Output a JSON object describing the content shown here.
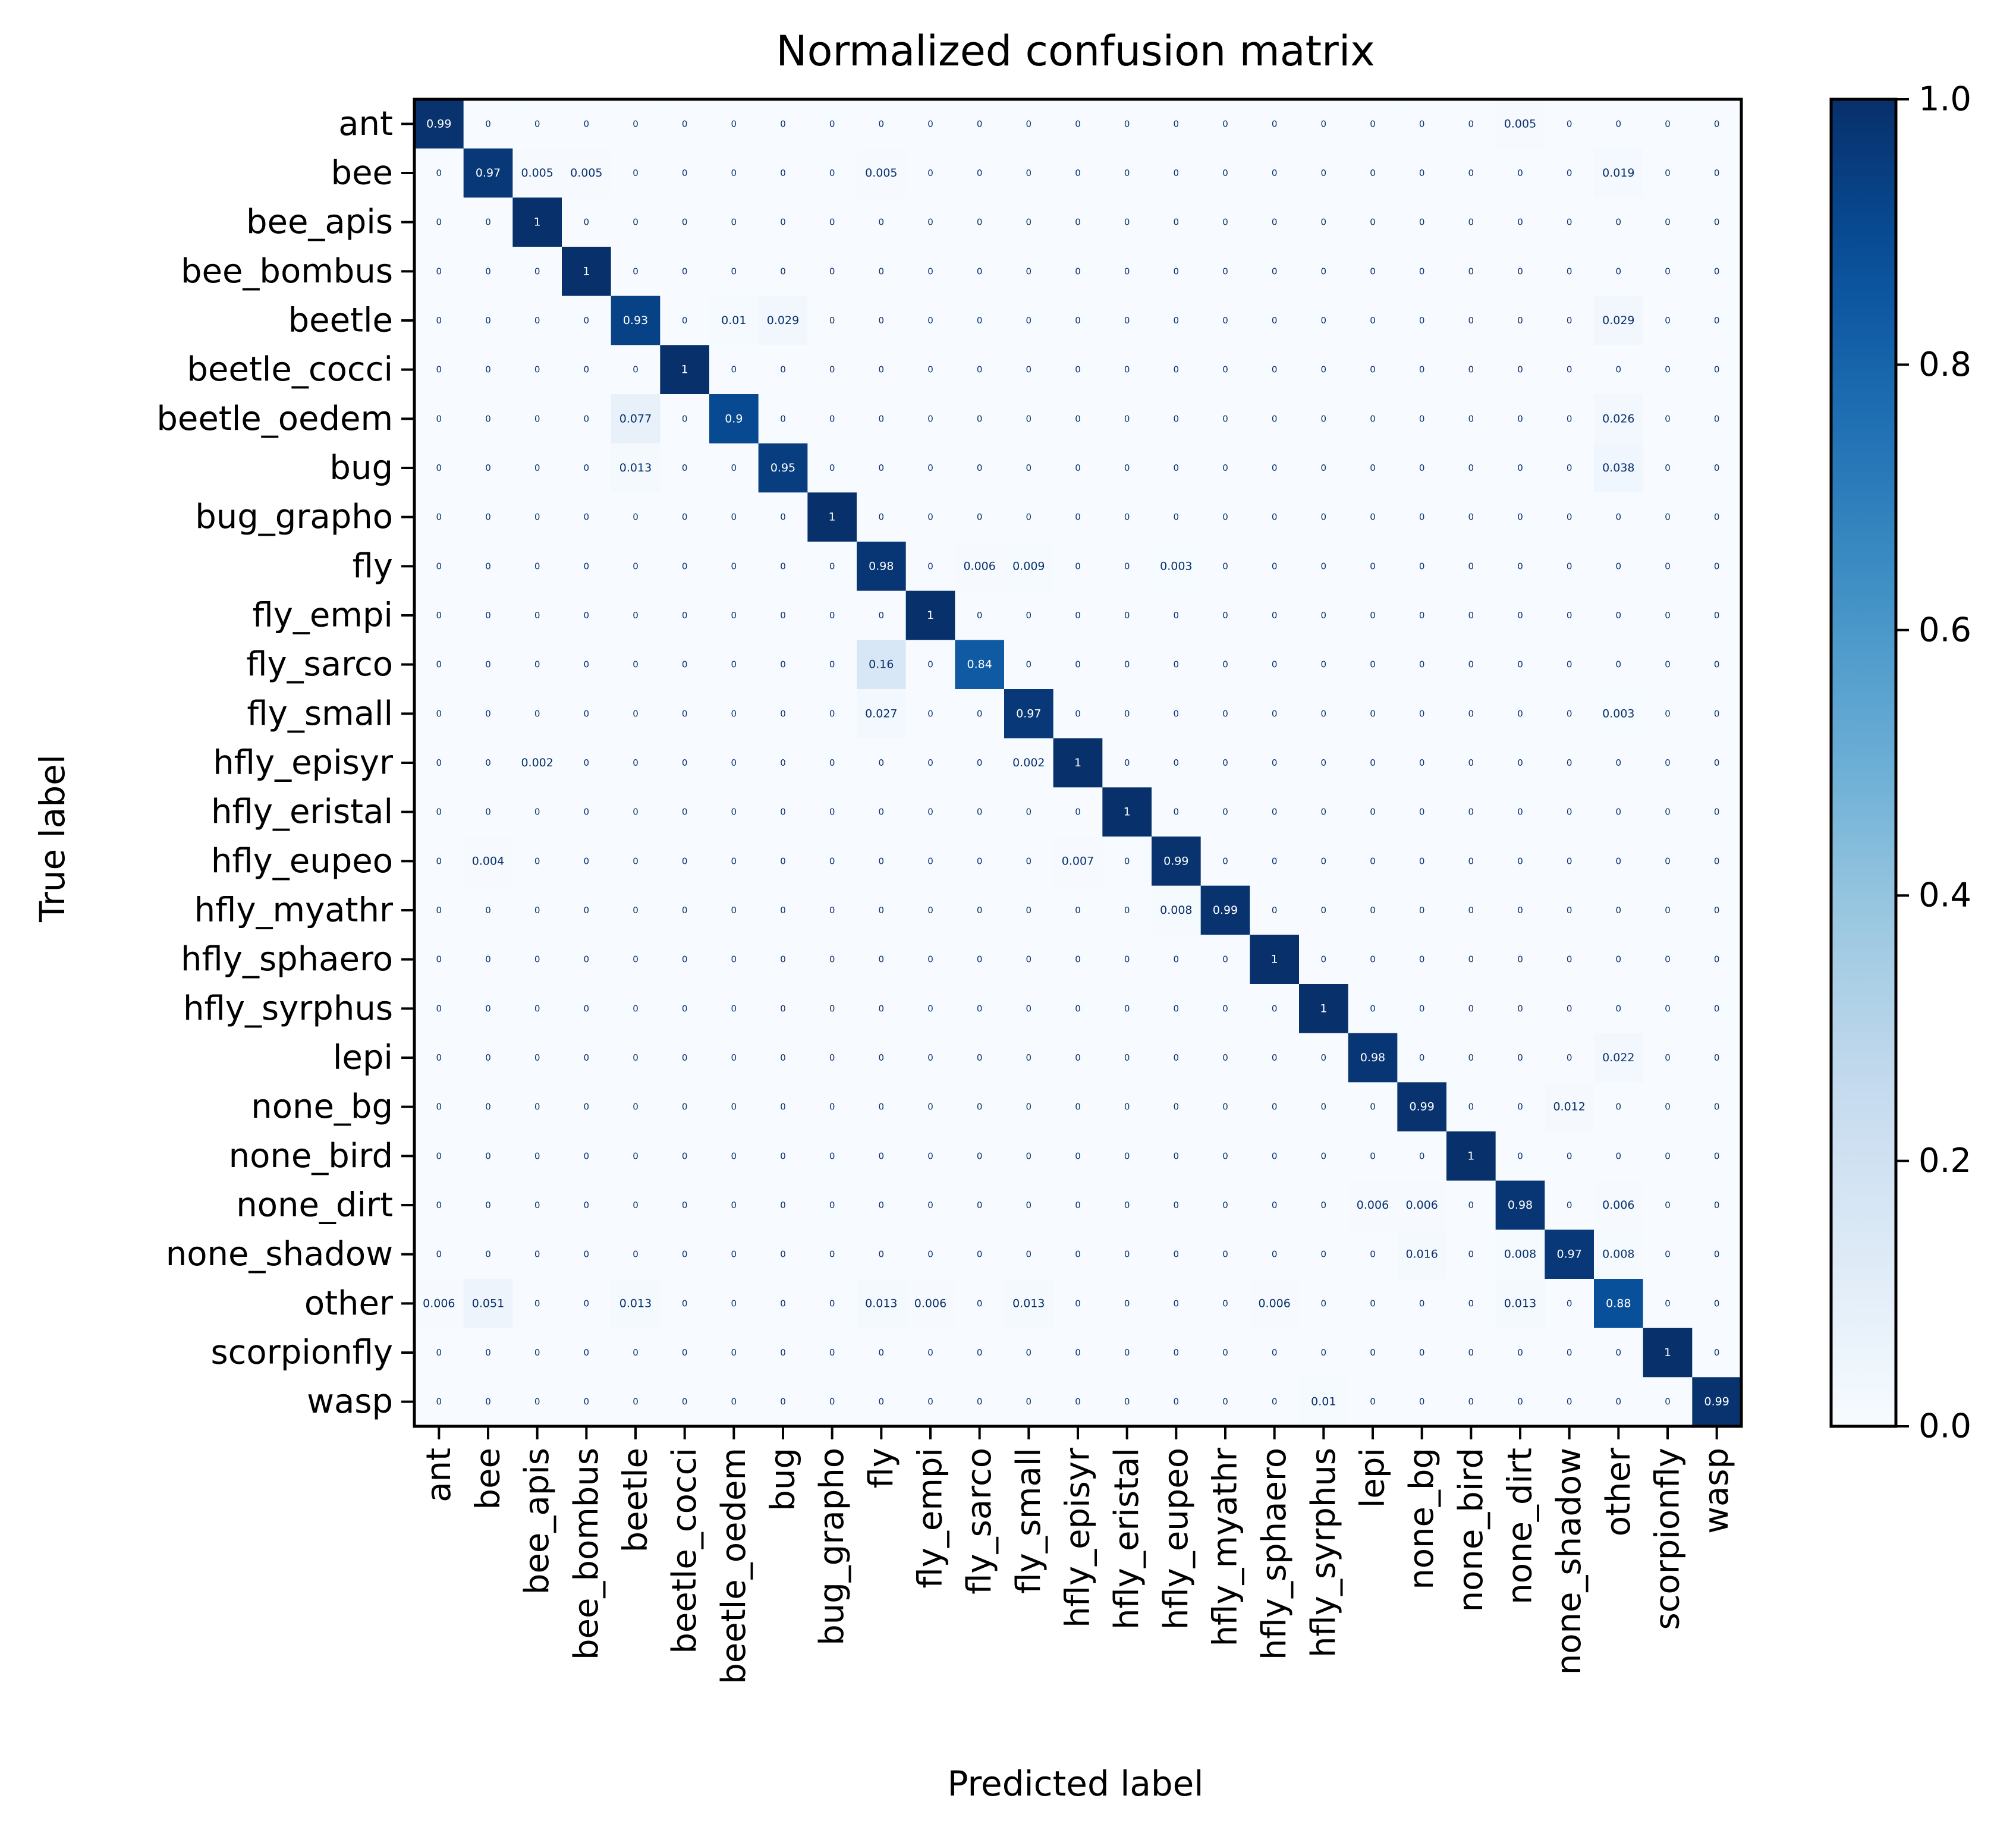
{
  "chart_data": {
    "type": "heatmap",
    "title": "Normalized confusion matrix",
    "xlabel": "Predicted label",
    "ylabel": "True label",
    "colormap": "Blues",
    "color_low": "#f7fbff",
    "color_high": "#08306b",
    "colorbar": {
      "range": [
        0.0,
        1.0
      ],
      "ticks": [
        0.0,
        0.2,
        0.4,
        0.6,
        0.8,
        1.0
      ],
      "tick_labels": [
        "0.0",
        "0.2",
        "0.4",
        "0.6",
        "0.8",
        "1.0"
      ]
    },
    "labels": [
      "ant",
      "bee",
      "bee_apis",
      "bee_bombus",
      "beetle",
      "beetle_cocci",
      "beetle_oedem",
      "bug",
      "bug_grapho",
      "fly",
      "fly_empi",
      "fly_sarco",
      "fly_small",
      "hfly_episyr",
      "hfly_eristal",
      "hfly_eupeo",
      "hfly_myathr",
      "hfly_sphaero",
      "hfly_syrphus",
      "lepi",
      "none_bg",
      "none_bird",
      "none_dirt",
      "none_shadow",
      "other",
      "scorpionfly",
      "wasp"
    ],
    "matrix": [
      [
        "0.99",
        "0",
        "0",
        "0",
        "0",
        "0",
        "0",
        "0",
        "0",
        "0",
        "0",
        "0",
        "0",
        "0",
        "0",
        "0",
        "0",
        "0",
        "0",
        "0",
        "0",
        "0",
        "0.005",
        "0",
        "0",
        "0",
        "0"
      ],
      [
        "0",
        "0.97",
        "0.005",
        "0.005",
        "0",
        "0",
        "0",
        "0",
        "0",
        "0.005",
        "0",
        "0",
        "0",
        "0",
        "0",
        "0",
        "0",
        "0",
        "0",
        "0",
        "0",
        "0",
        "0",
        "0",
        "0.019",
        "0",
        "0"
      ],
      [
        "0",
        "0",
        "1",
        "0",
        "0",
        "0",
        "0",
        "0",
        "0",
        "0",
        "0",
        "0",
        "0",
        "0",
        "0",
        "0",
        "0",
        "0",
        "0",
        "0",
        "0",
        "0",
        "0",
        "0",
        "0",
        "0",
        "0"
      ],
      [
        "0",
        "0",
        "0",
        "1",
        "0",
        "0",
        "0",
        "0",
        "0",
        "0",
        "0",
        "0",
        "0",
        "0",
        "0",
        "0",
        "0",
        "0",
        "0",
        "0",
        "0",
        "0",
        "0",
        "0",
        "0",
        "0",
        "0"
      ],
      [
        "0",
        "0",
        "0",
        "0",
        "0.93",
        "0",
        "0.01",
        "0.029",
        "0",
        "0",
        "0",
        "0",
        "0",
        "0",
        "0",
        "0",
        "0",
        "0",
        "0",
        "0",
        "0",
        "0",
        "0",
        "0",
        "0.029",
        "0",
        "0"
      ],
      [
        "0",
        "0",
        "0",
        "0",
        "0",
        "1",
        "0",
        "0",
        "0",
        "0",
        "0",
        "0",
        "0",
        "0",
        "0",
        "0",
        "0",
        "0",
        "0",
        "0",
        "0",
        "0",
        "0",
        "0",
        "0",
        "0",
        "0"
      ],
      [
        "0",
        "0",
        "0",
        "0",
        "0.077",
        "0",
        "0.9",
        "0",
        "0",
        "0",
        "0",
        "0",
        "0",
        "0",
        "0",
        "0",
        "0",
        "0",
        "0",
        "0",
        "0",
        "0",
        "0",
        "0",
        "0.026",
        "0",
        "0"
      ],
      [
        "0",
        "0",
        "0",
        "0",
        "0.013",
        "0",
        "0",
        "0.95",
        "0",
        "0",
        "0",
        "0",
        "0",
        "0",
        "0",
        "0",
        "0",
        "0",
        "0",
        "0",
        "0",
        "0",
        "0",
        "0",
        "0.038",
        "0",
        "0"
      ],
      [
        "0",
        "0",
        "0",
        "0",
        "0",
        "0",
        "0",
        "0",
        "1",
        "0",
        "0",
        "0",
        "0",
        "0",
        "0",
        "0",
        "0",
        "0",
        "0",
        "0",
        "0",
        "0",
        "0",
        "0",
        "0",
        "0",
        "0"
      ],
      [
        "0",
        "0",
        "0",
        "0",
        "0",
        "0",
        "0",
        "0",
        "0",
        "0.98",
        "0",
        "0.006",
        "0.009",
        "0",
        "0",
        "0.003",
        "0",
        "0",
        "0",
        "0",
        "0",
        "0",
        "0",
        "0",
        "0",
        "0",
        "0"
      ],
      [
        "0",
        "0",
        "0",
        "0",
        "0",
        "0",
        "0",
        "0",
        "0",
        "0",
        "1",
        "0",
        "0",
        "0",
        "0",
        "0",
        "0",
        "0",
        "0",
        "0",
        "0",
        "0",
        "0",
        "0",
        "0",
        "0",
        "0"
      ],
      [
        "0",
        "0",
        "0",
        "0",
        "0",
        "0",
        "0",
        "0",
        "0",
        "0.16",
        "0",
        "0.84",
        "0",
        "0",
        "0",
        "0",
        "0",
        "0",
        "0",
        "0",
        "0",
        "0",
        "0",
        "0",
        "0",
        "0",
        "0"
      ],
      [
        "0",
        "0",
        "0",
        "0",
        "0",
        "0",
        "0",
        "0",
        "0",
        "0.027",
        "0",
        "0",
        "0.97",
        "0",
        "0",
        "0",
        "0",
        "0",
        "0",
        "0",
        "0",
        "0",
        "0",
        "0",
        "0.003",
        "0",
        "0"
      ],
      [
        "0",
        "0",
        "0.002",
        "0",
        "0",
        "0",
        "0",
        "0",
        "0",
        "0",
        "0",
        "0",
        "0.002",
        "1",
        "0",
        "0",
        "0",
        "0",
        "0",
        "0",
        "0",
        "0",
        "0",
        "0",
        "0",
        "0",
        "0"
      ],
      [
        "0",
        "0",
        "0",
        "0",
        "0",
        "0",
        "0",
        "0",
        "0",
        "0",
        "0",
        "0",
        "0",
        "0",
        "1",
        "0",
        "0",
        "0",
        "0",
        "0",
        "0",
        "0",
        "0",
        "0",
        "0",
        "0",
        "0"
      ],
      [
        "0",
        "0.004",
        "0",
        "0",
        "0",
        "0",
        "0",
        "0",
        "0",
        "0",
        "0",
        "0",
        "0",
        "0.007",
        "0",
        "0.99",
        "0",
        "0",
        "0",
        "0",
        "0",
        "0",
        "0",
        "0",
        "0",
        "0",
        "0"
      ],
      [
        "0",
        "0",
        "0",
        "0",
        "0",
        "0",
        "0",
        "0",
        "0",
        "0",
        "0",
        "0",
        "0",
        "0",
        "0",
        "0.008",
        "0.99",
        "0",
        "0",
        "0",
        "0",
        "0",
        "0",
        "0",
        "0",
        "0",
        "0"
      ],
      [
        "0",
        "0",
        "0",
        "0",
        "0",
        "0",
        "0",
        "0",
        "0",
        "0",
        "0",
        "0",
        "0",
        "0",
        "0",
        "0",
        "0",
        "1",
        "0",
        "0",
        "0",
        "0",
        "0",
        "0",
        "0",
        "0",
        "0"
      ],
      [
        "0",
        "0",
        "0",
        "0",
        "0",
        "0",
        "0",
        "0",
        "0",
        "0",
        "0",
        "0",
        "0",
        "0",
        "0",
        "0",
        "0",
        "0",
        "1",
        "0",
        "0",
        "0",
        "0",
        "0",
        "0",
        "0",
        "0"
      ],
      [
        "0",
        "0",
        "0",
        "0",
        "0",
        "0",
        "0",
        "0",
        "0",
        "0",
        "0",
        "0",
        "0",
        "0",
        "0",
        "0",
        "0",
        "0",
        "0",
        "0.98",
        "0",
        "0",
        "0",
        "0",
        "0.022",
        "0",
        "0"
      ],
      [
        "0",
        "0",
        "0",
        "0",
        "0",
        "0",
        "0",
        "0",
        "0",
        "0",
        "0",
        "0",
        "0",
        "0",
        "0",
        "0",
        "0",
        "0",
        "0",
        "0",
        "0.99",
        "0",
        "0",
        "0.012",
        "0",
        "0",
        "0"
      ],
      [
        "0",
        "0",
        "0",
        "0",
        "0",
        "0",
        "0",
        "0",
        "0",
        "0",
        "0",
        "0",
        "0",
        "0",
        "0",
        "0",
        "0",
        "0",
        "0",
        "0",
        "0",
        "1",
        "0",
        "0",
        "0",
        "0",
        "0"
      ],
      [
        "0",
        "0",
        "0",
        "0",
        "0",
        "0",
        "0",
        "0",
        "0",
        "0",
        "0",
        "0",
        "0",
        "0",
        "0",
        "0",
        "0",
        "0",
        "0",
        "0.006",
        "0.006",
        "0",
        "0.98",
        "0",
        "0.006",
        "0",
        "0"
      ],
      [
        "0",
        "0",
        "0",
        "0",
        "0",
        "0",
        "0",
        "0",
        "0",
        "0",
        "0",
        "0",
        "0",
        "0",
        "0",
        "0",
        "0",
        "0",
        "0",
        "0",
        "0.016",
        "0",
        "0.008",
        "0.97",
        "0.008",
        "0",
        "0"
      ],
      [
        "0.006",
        "0.051",
        "0",
        "0",
        "0.013",
        "0",
        "0",
        "0",
        "0",
        "0.013",
        "0.006",
        "0",
        "0.013",
        "0",
        "0",
        "0",
        "0",
        "0.006",
        "0",
        "0",
        "0",
        "0",
        "0.013",
        "0",
        "0.88",
        "0",
        "0"
      ],
      [
        "0",
        "0",
        "0",
        "0",
        "0",
        "0",
        "0",
        "0",
        "0",
        "0",
        "0",
        "0",
        "0",
        "0",
        "0",
        "0",
        "0",
        "0",
        "0",
        "0",
        "0",
        "0",
        "0",
        "0",
        "0",
        "1",
        "0"
      ],
      [
        "0",
        "0",
        "0",
        "0",
        "0",
        "0",
        "0",
        "0",
        "0",
        "0",
        "0",
        "0",
        "0",
        "0",
        "0",
        "0",
        "0",
        "0",
        "0.01",
        "0",
        "0",
        "0",
        "0",
        "0",
        "0",
        "0",
        "0.99"
      ]
    ]
  }
}
